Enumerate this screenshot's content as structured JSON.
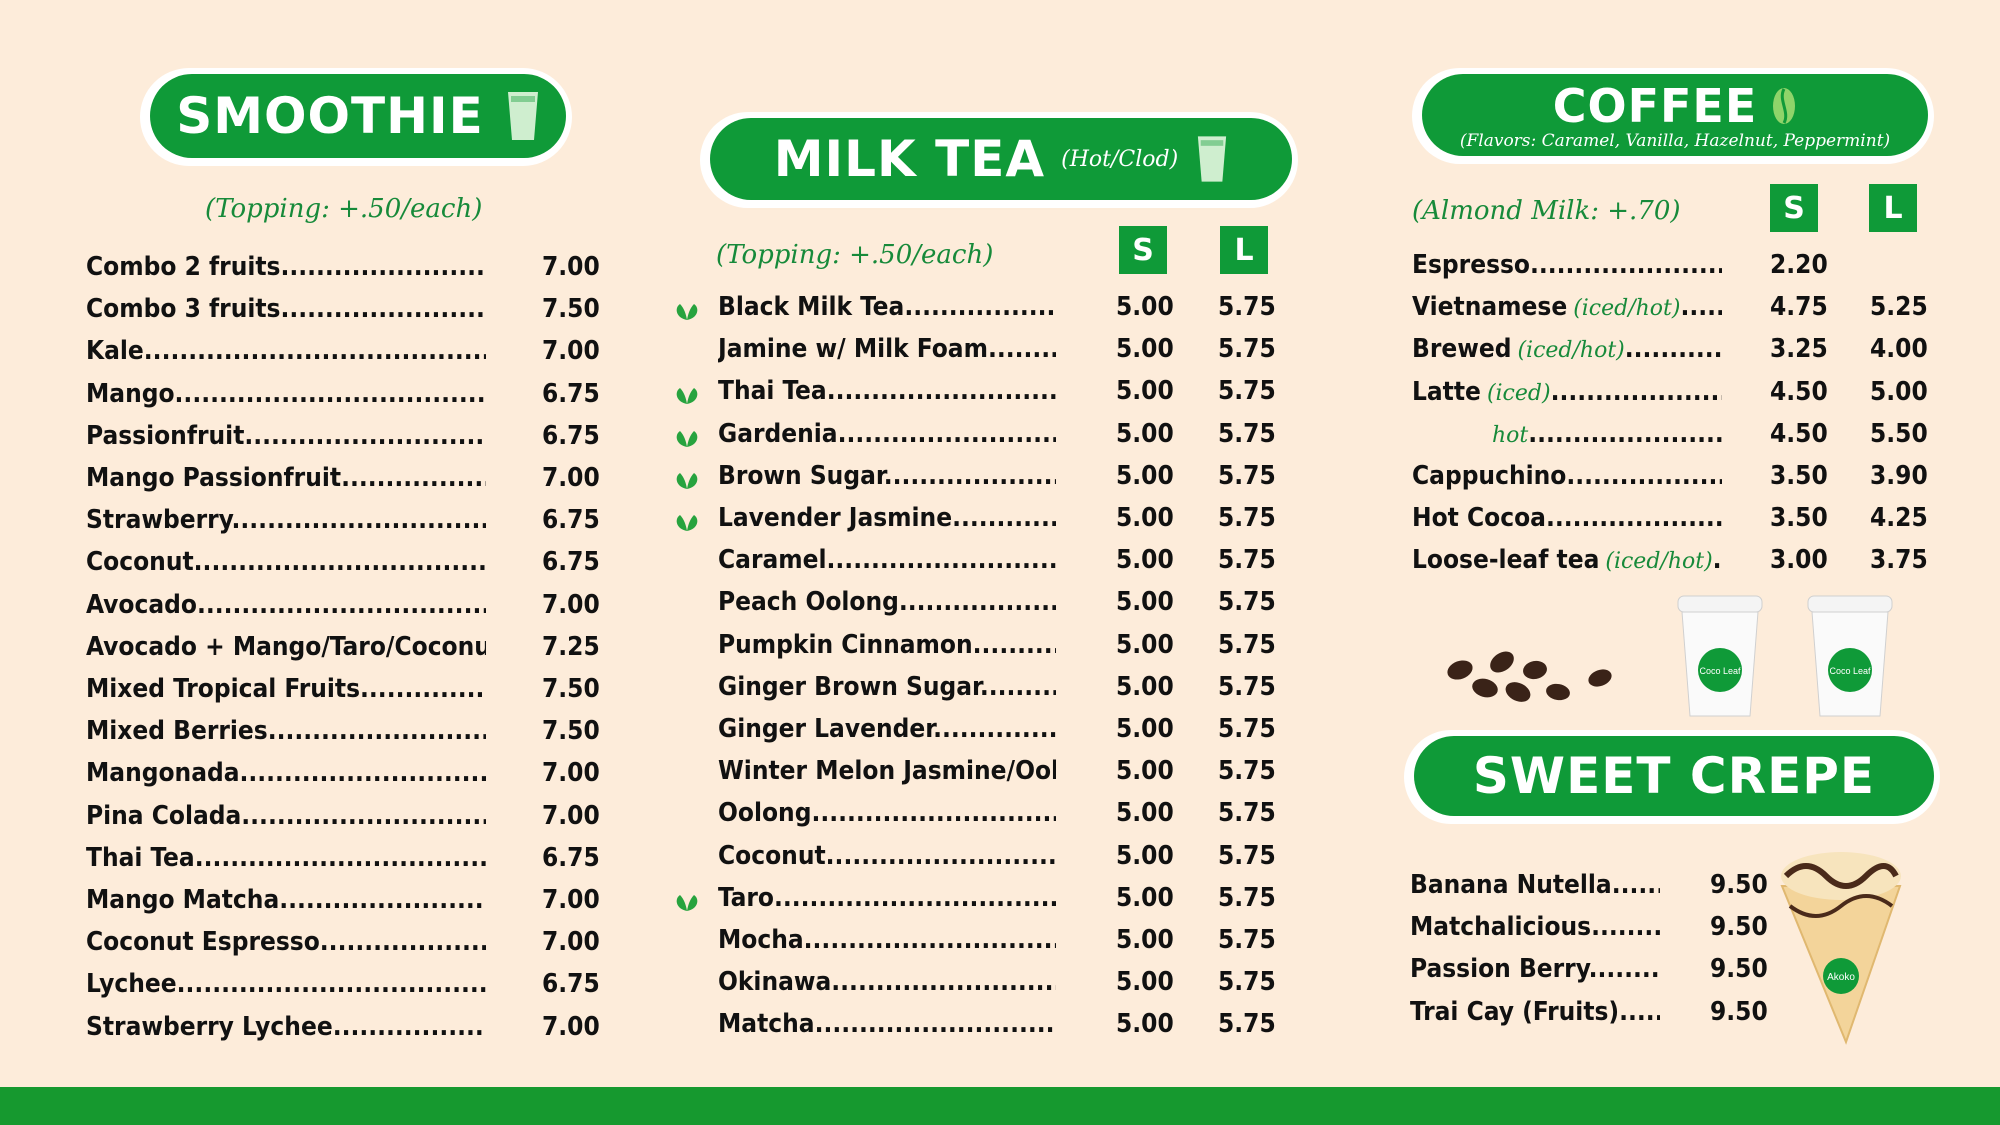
{
  "smoothie": {
    "title": "SMOOTHIE",
    "topping": "(Topping: +.50/each)",
    "items": [
      {
        "name": "Combo 2 fruits",
        "price": "7.00"
      },
      {
        "name": "Combo 3 fruits",
        "price": "7.50"
      },
      {
        "name": "Kale",
        "price": "7.00"
      },
      {
        "name": "Mango",
        "price": "6.75"
      },
      {
        "name": "Passionfruit",
        "price": "6.75"
      },
      {
        "name": "Mango Passionfruit",
        "price": "7.00"
      },
      {
        "name": "Strawberry",
        "price": "6.75"
      },
      {
        "name": "Coconut",
        "price": "6.75"
      },
      {
        "name": "Avocado",
        "price": "7.00"
      },
      {
        "name": "Avocado + Mango/Taro/Coconut",
        "price": "7.25"
      },
      {
        "name": "Mixed Tropical Fruits",
        "price": "7.50"
      },
      {
        "name": "Mixed Berries",
        "price": "7.50"
      },
      {
        "name": "Mangonada",
        "price": "7.00"
      },
      {
        "name": "Pina Colada",
        "price": "7.00"
      },
      {
        "name": "Thai Tea",
        "price": "6.75"
      },
      {
        "name": "Mango Matcha",
        "price": "7.00"
      },
      {
        "name": "Coconut Espresso",
        "price": "7.00"
      },
      {
        "name": "Lychee",
        "price": "6.75"
      },
      {
        "name": "Strawberry Lychee",
        "price": "7.00"
      }
    ]
  },
  "milk_tea": {
    "title": "MILK TEA",
    "subtitle": "(Hot/Clod)",
    "topping": "(Topping: +.50/each)",
    "size_s": "S",
    "size_l": "L",
    "items": [
      {
        "name": "Black Milk Tea",
        "s": "5.00",
        "l": "5.75",
        "leaf": true
      },
      {
        "name": "Jamine w/ Milk Foam",
        "s": "5.00",
        "l": "5.75",
        "leaf": false
      },
      {
        "name": "Thai Tea",
        "s": "5.00",
        "l": "5.75",
        "leaf": true
      },
      {
        "name": "Gardenia",
        "s": "5.00",
        "l": "5.75",
        "leaf": true
      },
      {
        "name": "Brown Sugar",
        "s": "5.00",
        "l": "5.75",
        "leaf": true
      },
      {
        "name": "Lavender Jasmine",
        "s": "5.00",
        "l": "5.75",
        "leaf": true
      },
      {
        "name": "Caramel",
        "s": "5.00",
        "l": "5.75",
        "leaf": false
      },
      {
        "name": "Peach Oolong",
        "s": "5.00",
        "l": "5.75",
        "leaf": false
      },
      {
        "name": "Pumpkin Cinnamon",
        "s": "5.00",
        "l": "5.75",
        "leaf": false
      },
      {
        "name": "Ginger Brown Sugar",
        "s": "5.00",
        "l": "5.75",
        "leaf": false
      },
      {
        "name": "Ginger Lavender",
        "s": "5.00",
        "l": "5.75",
        "leaf": false
      },
      {
        "name": "Winter Melon Jasmine/Oolong",
        "s": "5.00",
        "l": "5.75",
        "leaf": false
      },
      {
        "name": "Oolong",
        "s": "5.00",
        "l": "5.75",
        "leaf": false
      },
      {
        "name": "Coconut",
        "s": "5.00",
        "l": "5.75",
        "leaf": false
      },
      {
        "name": "Taro",
        "s": "5.00",
        "l": "5.75",
        "leaf": true
      },
      {
        "name": "Mocha",
        "s": "5.00",
        "l": "5.75",
        "leaf": false
      },
      {
        "name": "Okinawa",
        "s": "5.00",
        "l": "5.75",
        "leaf": false
      },
      {
        "name": "Matcha",
        "s": "5.00",
        "l": "5.75",
        "leaf": false
      }
    ]
  },
  "coffee": {
    "title": "COFFEE",
    "flavors": "(Flavors: Caramel, Vanilla, Hazelnut, Peppermint)",
    "almond": "(Almond Milk: +.70)",
    "size_s": "S",
    "size_l": "L",
    "items": [
      {
        "name": "Espresso",
        "note": "",
        "s": "2.20",
        "l": ""
      },
      {
        "name": "Vietnamese",
        "note": "(iced/hot)",
        "s": "4.75",
        "l": "5.25"
      },
      {
        "name": "Brewed",
        "note": "(iced/hot)",
        "s": "3.25",
        "l": "4.00"
      },
      {
        "name": "Latte",
        "note": "(iced)",
        "s": "4.50",
        "l": "5.00"
      },
      {
        "name": "",
        "note": "hot",
        "s": "4.50",
        "l": "5.50"
      },
      {
        "name": "Cappuchino",
        "note": "",
        "s": "3.50",
        "l": "3.90"
      },
      {
        "name": "Hot Cocoa",
        "note": "",
        "s": "3.50",
        "l": "4.25"
      },
      {
        "name": "Loose-leaf tea",
        "note": "(iced/hot)",
        "s": "3.00",
        "l": "3.75"
      }
    ],
    "cup_brand": "Coco Leaf"
  },
  "crepe": {
    "title": "SWEET CREPE",
    "items": [
      {
        "name": "Banana Nutella",
        "price": "9.50"
      },
      {
        "name": "Matchalicious",
        "price": "9.50"
      },
      {
        "name": "Passion Berry",
        "price": "9.50"
      },
      {
        "name": "Trai Cay (Fruits)",
        "price": "9.50"
      }
    ],
    "wrap_brand": "Akoko"
  },
  "colors": {
    "green": "#0f9a38",
    "background": "#fdecda",
    "footer": "#16992f"
  }
}
